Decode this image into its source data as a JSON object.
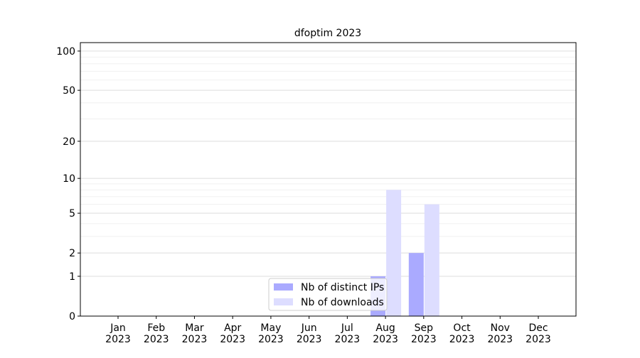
{
  "chart_data": {
    "type": "bar",
    "title": "dfoptim 2023",
    "categories": [
      [
        "Jan",
        "2023"
      ],
      [
        "Feb",
        "2023"
      ],
      [
        "Mar",
        "2023"
      ],
      [
        "Apr",
        "2023"
      ],
      [
        "May",
        "2023"
      ],
      [
        "Jun",
        "2023"
      ],
      [
        "Jul",
        "2023"
      ],
      [
        "Aug",
        "2023"
      ],
      [
        "Sep",
        "2023"
      ],
      [
        "Oct",
        "2023"
      ],
      [
        "Nov",
        "2023"
      ],
      [
        "Dec",
        "2023"
      ]
    ],
    "series": [
      {
        "name": "Nb of distinct IPs",
        "color": "#aaaaff",
        "values": [
          0,
          0,
          0,
          0,
          0,
          0,
          0,
          1,
          2,
          0,
          0,
          0
        ]
      },
      {
        "name": "Nb of downloads",
        "color": "#ddddff",
        "values": [
          0,
          0,
          0,
          0,
          0,
          0,
          0,
          8,
          6,
          0,
          0,
          0
        ]
      }
    ],
    "yscale": "log1p",
    "ylim": [
      0,
      116
    ],
    "yticks": [
      0,
      1,
      2,
      5,
      10,
      20,
      50,
      100
    ],
    "yminorticks": [
      3,
      4,
      6,
      7,
      8,
      9,
      30,
      40,
      60,
      70,
      80,
      90
    ],
    "grid": true,
    "legend": "lower center"
  }
}
